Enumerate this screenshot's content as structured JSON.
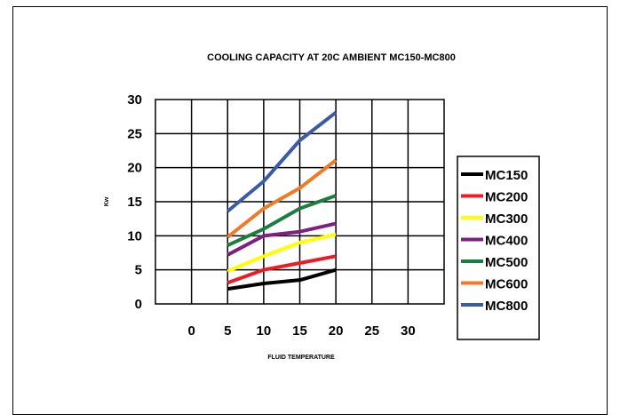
{
  "chart_data": {
    "type": "line",
    "title": "COOLING CAPACITY AT 20C AMBIENT MC150-MC800",
    "xlabel": "FLUID TEMPERATURE",
    "ylabel": "Kw",
    "xlim": [
      -5,
      35
    ],
    "ylim": [
      0,
      30
    ],
    "x_ticks": [
      "0",
      "5",
      "10",
      "15",
      "20",
      "25",
      "30"
    ],
    "y_ticks": [
      "0",
      "5",
      "10",
      "15",
      "20",
      "25",
      "30"
    ],
    "grid": true,
    "legend_position": "right",
    "x": [
      5,
      10,
      15,
      20
    ],
    "series": [
      {
        "name": "MC150",
        "color": "#000000",
        "values": [
          2.2,
          3.0,
          3.5,
          5.0
        ]
      },
      {
        "name": "MC200",
        "color": "#ed1c24",
        "values": [
          3.1,
          5.0,
          6.0,
          7.0
        ]
      },
      {
        "name": "MC300",
        "color": "#ffff00",
        "values": [
          4.8,
          7.0,
          9.0,
          10.2
        ]
      },
      {
        "name": "MC400",
        "color": "#7f1f7f",
        "values": [
          7.2,
          10.0,
          10.6,
          11.8
        ]
      },
      {
        "name": "MC500",
        "color": "#1a7f3c",
        "values": [
          8.6,
          11.0,
          14.0,
          15.9
        ]
      },
      {
        "name": "MC600",
        "color": "#f07a25",
        "values": [
          9.8,
          14.0,
          17.0,
          21.1
        ]
      },
      {
        "name": "MC800",
        "color": "#3b5aa8",
        "values": [
          13.6,
          18.0,
          24.0,
          28.1
        ]
      }
    ]
  }
}
